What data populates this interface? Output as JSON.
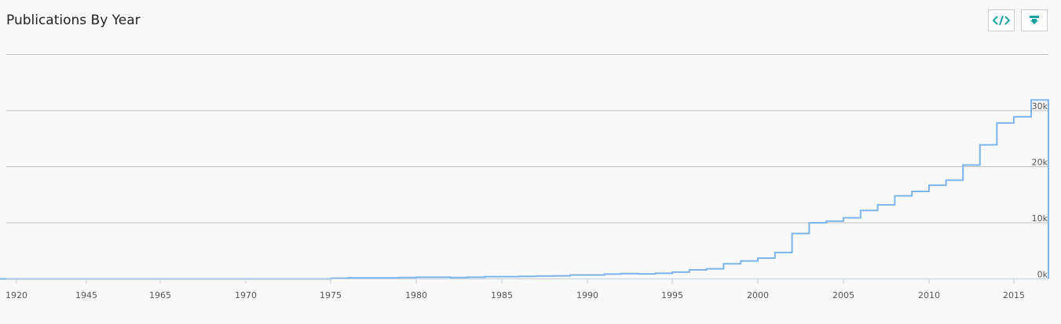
{
  "header": {
    "title": "Publications By Year",
    "embed_button_icon": "code-icon",
    "download_button_icon": "download-icon"
  },
  "colors": {
    "accent": "#1aa3a3",
    "line": "#7cb5ec",
    "grid": "#c0c0c0"
  },
  "chart_data": {
    "type": "line",
    "step": true,
    "title": "Publications By Year",
    "xlabel": "",
    "ylabel": "",
    "xlim": [
      1919.5,
      2017
    ],
    "ylim": [
      0,
      40000
    ],
    "grid": true,
    "y_ticks": [
      {
        "value": 0,
        "label": "0k"
      },
      {
        "value": 10000,
        "label": "10k"
      },
      {
        "value": 20000,
        "label": "20k"
      },
      {
        "value": 30000,
        "label": "30k"
      }
    ],
    "x_tick_labels": [
      "1920",
      "1945",
      "1965",
      "1970",
      "1975",
      "1980",
      "1985",
      "1990",
      "1995",
      "2000",
      "2005",
      "2010",
      "2015"
    ],
    "series": [
      {
        "x": [
          1919,
          1920,
          1945,
          1965,
          1970,
          1975,
          1976,
          1977,
          1978,
          1979,
          1980,
          1981,
          1982,
          1983,
          1984,
          1985,
          1986,
          1987,
          1988,
          1989,
          1990,
          1991,
          1992,
          1993,
          1994,
          1995,
          1996,
          1997,
          1998,
          1999,
          2000,
          2001,
          2002,
          2003,
          2004,
          2005,
          2006,
          2007,
          2008,
          2009,
          2010,
          2011,
          2012,
          2013,
          2014,
          2015,
          2016
        ],
        "y": [
          0,
          0,
          0,
          0,
          0,
          100,
          200,
          200,
          200,
          250,
          300,
          300,
          250,
          300,
          400,
          400,
          450,
          500,
          550,
          700,
          700,
          850,
          950,
          900,
          1000,
          1200,
          1600,
          1800,
          2700,
          3200,
          3700,
          4700,
          8100,
          10000,
          10300,
          10900,
          12200,
          13200,
          14800,
          15600,
          16700,
          17600,
          20300,
          23900,
          27800,
          28900,
          31900
        ]
      }
    ]
  }
}
